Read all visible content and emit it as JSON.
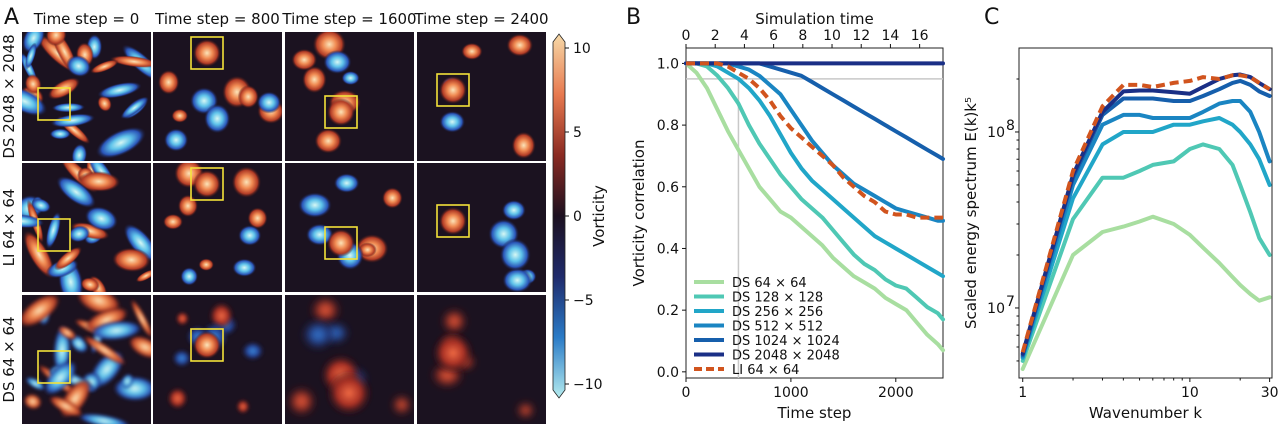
{
  "panel_labels": [
    "A",
    "B",
    "C"
  ],
  "panel_a": {
    "column_titles": [
      "Time step = 0",
      "Time step = 800",
      "Time step = 1600",
      "Time step = 2400"
    ],
    "row_labels": [
      "DS 2048 × 2048",
      "LI 64 × 64",
      "DS 64 × 64"
    ],
    "colorbar": {
      "label": "Vorticity",
      "ticks": [
        "10",
        "5",
        "0",
        "−5",
        "−10"
      ],
      "colors": [
        "#f6d9a8",
        "#e7794f",
        "#8a2a22",
        "#1c1020",
        "#1f2a6b",
        "#2a7bc7",
        "#b5ecef"
      ]
    }
  },
  "chart_data": [
    {
      "type": "line",
      "panel": "B",
      "xlabel": "Time step",
      "ylabel": "Vorticity correlation",
      "top_xlabel": "Simulation time",
      "xlim": [
        0,
        2450
      ],
      "ylim": [
        -0.02,
        1.05
      ],
      "top_xlim": [
        0,
        17.6
      ],
      "x_ticks": [
        "0",
        "1000",
        "2000"
      ],
      "y_ticks": [
        "0.0",
        "0.2",
        "0.4",
        "0.6",
        "0.8",
        "1.0"
      ],
      "top_ticks": [
        "0",
        "2",
        "4",
        "6",
        "8",
        "10",
        "12",
        "14",
        "16"
      ],
      "reference_lines": {
        "horizontal_y": 0.95,
        "vertical_x": 500
      },
      "legend_position": "lower-left",
      "x": [
        0,
        100,
        200,
        300,
        400,
        500,
        600,
        700,
        800,
        900,
        1000,
        1100,
        1200,
        1300,
        1400,
        1500,
        1600,
        1700,
        1800,
        1900,
        2000,
        2100,
        2200,
        2300,
        2400,
        2450
      ],
      "series": [
        {
          "name": "DS 64 × 64",
          "color": "#a8dea0",
          "dashed": false,
          "values": [
            1.0,
            0.97,
            0.92,
            0.85,
            0.78,
            0.72,
            0.66,
            0.6,
            0.56,
            0.52,
            0.5,
            0.47,
            0.44,
            0.41,
            0.37,
            0.34,
            0.31,
            0.29,
            0.27,
            0.24,
            0.22,
            0.2,
            0.16,
            0.12,
            0.09,
            0.07
          ]
        },
        {
          "name": "DS 128 × 128",
          "color": "#4fc8b4",
          "dashed": false,
          "values": [
            1.0,
            1.0,
            0.99,
            0.96,
            0.92,
            0.87,
            0.8,
            0.74,
            0.69,
            0.64,
            0.6,
            0.56,
            0.53,
            0.5,
            0.46,
            0.42,
            0.38,
            0.35,
            0.33,
            0.3,
            0.28,
            0.27,
            0.24,
            0.21,
            0.19,
            0.17
          ]
        },
        {
          "name": "DS 256 × 256",
          "color": "#21a6c8",
          "dashed": false,
          "values": [
            1.0,
            1.0,
            1.0,
            0.99,
            0.97,
            0.95,
            0.92,
            0.88,
            0.83,
            0.77,
            0.71,
            0.66,
            0.62,
            0.59,
            0.56,
            0.53,
            0.5,
            0.47,
            0.44,
            0.42,
            0.4,
            0.38,
            0.36,
            0.34,
            0.32,
            0.31
          ]
        },
        {
          "name": "DS 512 × 512",
          "color": "#1a85c2",
          "dashed": false,
          "values": [
            1.0,
            1.0,
            1.0,
            1.0,
            1.0,
            0.99,
            0.98,
            0.96,
            0.93,
            0.9,
            0.85,
            0.8,
            0.75,
            0.71,
            0.67,
            0.64,
            0.61,
            0.59,
            0.57,
            0.55,
            0.53,
            0.52,
            0.51,
            0.5,
            0.49,
            0.49
          ]
        },
        {
          "name": "DS 1024 × 1024",
          "color": "#165fac",
          "dashed": false,
          "values": [
            1.0,
            1.0,
            1.0,
            1.0,
            1.0,
            1.0,
            1.0,
            1.0,
            0.99,
            0.98,
            0.97,
            0.96,
            0.94,
            0.92,
            0.9,
            0.88,
            0.86,
            0.84,
            0.82,
            0.8,
            0.78,
            0.76,
            0.74,
            0.72,
            0.7,
            0.69
          ]
        },
        {
          "name": "DS 2048 × 2048",
          "color": "#1a2f86",
          "dashed": false,
          "values": [
            1.0,
            1.0,
            1.0,
            1.0,
            1.0,
            1.0,
            1.0,
            1.0,
            1.0,
            1.0,
            1.0,
            1.0,
            1.0,
            1.0,
            1.0,
            1.0,
            1.0,
            1.0,
            1.0,
            1.0,
            1.0,
            1.0,
            1.0,
            1.0,
            1.0,
            1.0
          ]
        },
        {
          "name": "LI 64 × 64",
          "color": "#d1541e",
          "dashed": true,
          "values": [
            1.0,
            1.0,
            1.0,
            1.0,
            0.99,
            0.97,
            0.95,
            0.92,
            0.88,
            0.83,
            0.79,
            0.76,
            0.73,
            0.7,
            0.67,
            0.63,
            0.6,
            0.57,
            0.55,
            0.52,
            0.51,
            0.51,
            0.5,
            0.5,
            0.5,
            0.5
          ]
        }
      ]
    },
    {
      "type": "line",
      "panel": "C",
      "xscale": "log",
      "yscale": "log",
      "xlabel": "Wavenumber k",
      "ylabel": "Scaled energy spectrum E(k)k⁵",
      "xlim": [
        0.95,
        31
      ],
      "ylim": [
        4000000,
        300000000
      ],
      "x_ticks": [
        {
          "v": 1,
          "t": "1"
        },
        {
          "v": 10,
          "t": "10"
        },
        {
          "v": 30,
          "t": "30"
        }
      ],
      "y_ticks": [
        {
          "v": 10000000,
          "t": "10",
          "e": "7"
        },
        {
          "v": 100000000,
          "t": "10",
          "e": "8"
        }
      ],
      "x": [
        1,
        2,
        3,
        4,
        5,
        6,
        8,
        10,
        12,
        15,
        18,
        20,
        23,
        26,
        30
      ],
      "series": [
        {
          "name": "DS 64 × 64",
          "color": "#a8dea0",
          "dashed": false,
          "values": [
            4500000,
            20000000,
            27000000,
            29000000,
            31000000,
            33000000,
            30000000,
            26000000,
            22000000,
            18000000,
            15000000,
            13500000,
            12000000,
            11000000,
            11500000
          ]
        },
        {
          "name": "DS 128 × 128",
          "color": "#4fc8b4",
          "dashed": false,
          "values": [
            5000000,
            32000000,
            55000000,
            55000000,
            60000000,
            65000000,
            68000000,
            80000000,
            85000000,
            80000000,
            65000000,
            50000000,
            35000000,
            25000000,
            20000000
          ]
        },
        {
          "name": "DS 256 × 256",
          "color": "#21a6c8",
          "dashed": false,
          "values": [
            5200000,
            42000000,
            85000000,
            100000000,
            100000000,
            100000000,
            110000000,
            110000000,
            115000000,
            120000000,
            110000000,
            100000000,
            85000000,
            70000000,
            50000000
          ]
        },
        {
          "name": "DS 512 × 512",
          "color": "#1a85c2",
          "dashed": false,
          "values": [
            5300000,
            50000000,
            110000000,
            125000000,
            125000000,
            120000000,
            120000000,
            120000000,
            130000000,
            145000000,
            150000000,
            150000000,
            130000000,
            100000000,
            68000000
          ]
        },
        {
          "name": "DS 1024 × 1024",
          "color": "#165fac",
          "dashed": false,
          "values": [
            5400000,
            55000000,
            125000000,
            155000000,
            155000000,
            155000000,
            150000000,
            150000000,
            160000000,
            175000000,
            190000000,
            195000000,
            185000000,
            170000000,
            160000000
          ]
        },
        {
          "name": "DS 2048 × 2048",
          "color": "#1a2f86",
          "dashed": false,
          "values": [
            5500000,
            57000000,
            130000000,
            170000000,
            172000000,
            172000000,
            168000000,
            165000000,
            180000000,
            200000000,
            210000000,
            212000000,
            205000000,
            190000000,
            175000000
          ]
        },
        {
          "name": "LI 64 × 64",
          "color": "#d1541e",
          "dashed": true,
          "values": [
            5600000,
            60000000,
            140000000,
            185000000,
            185000000,
            180000000,
            190000000,
            195000000,
            205000000,
            200000000,
            210000000,
            210000000,
            205000000,
            190000000,
            175000000
          ]
        }
      ]
    }
  ]
}
